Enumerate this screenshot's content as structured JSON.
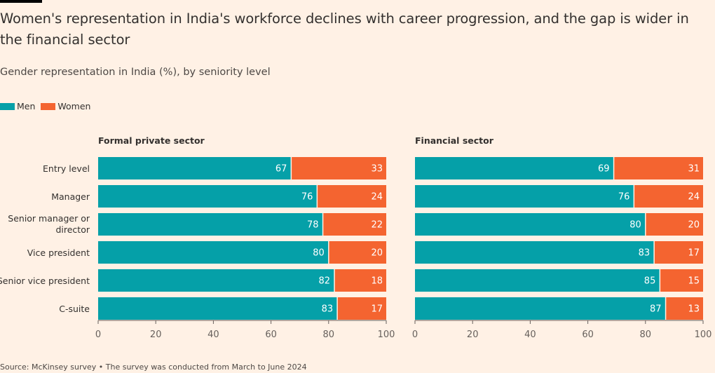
{
  "title": "Women's representation in India's workforce declines with career progression, and the gap is wider in the financial sector",
  "subtitle": "Gender representation in India (%), by seniority level",
  "legend": {
    "men": "Men",
    "women": "Women"
  },
  "colors": {
    "men": "#05A0A8",
    "women": "#F46430",
    "background": "#FFF1E5"
  },
  "source": "Source: McKinsey survey • The survey was conducted from March to June 2024",
  "chart_data": [
    {
      "type": "bar",
      "orientation": "horizontal",
      "stacked": true,
      "title": "Formal private sector",
      "categories": [
        "Entry level",
        "Manager",
        "Senior manager or director",
        "Vice president",
        "Senior vice president",
        "C-suite"
      ],
      "series": [
        {
          "name": "Men",
          "values": [
            67,
            76,
            78,
            80,
            82,
            83
          ]
        },
        {
          "name": "Women",
          "values": [
            33,
            24,
            22,
            20,
            18,
            17
          ]
        }
      ],
      "xlim": [
        0,
        100
      ],
      "xticks": [
        0,
        20,
        40,
        60,
        80,
        100
      ]
    },
    {
      "type": "bar",
      "orientation": "horizontal",
      "stacked": true,
      "title": "Financial sector",
      "categories": [
        "Entry level",
        "Manager",
        "Senior manager or director",
        "Vice president",
        "Senior vice president",
        "C-suite"
      ],
      "series": [
        {
          "name": "Men",
          "values": [
            69,
            76,
            80,
            83,
            85,
            87
          ]
        },
        {
          "name": "Women",
          "values": [
            31,
            24,
            20,
            17,
            15,
            13
          ]
        }
      ],
      "xlim": [
        0,
        100
      ],
      "xticks": [
        0,
        20,
        40,
        60,
        80,
        100
      ]
    }
  ]
}
